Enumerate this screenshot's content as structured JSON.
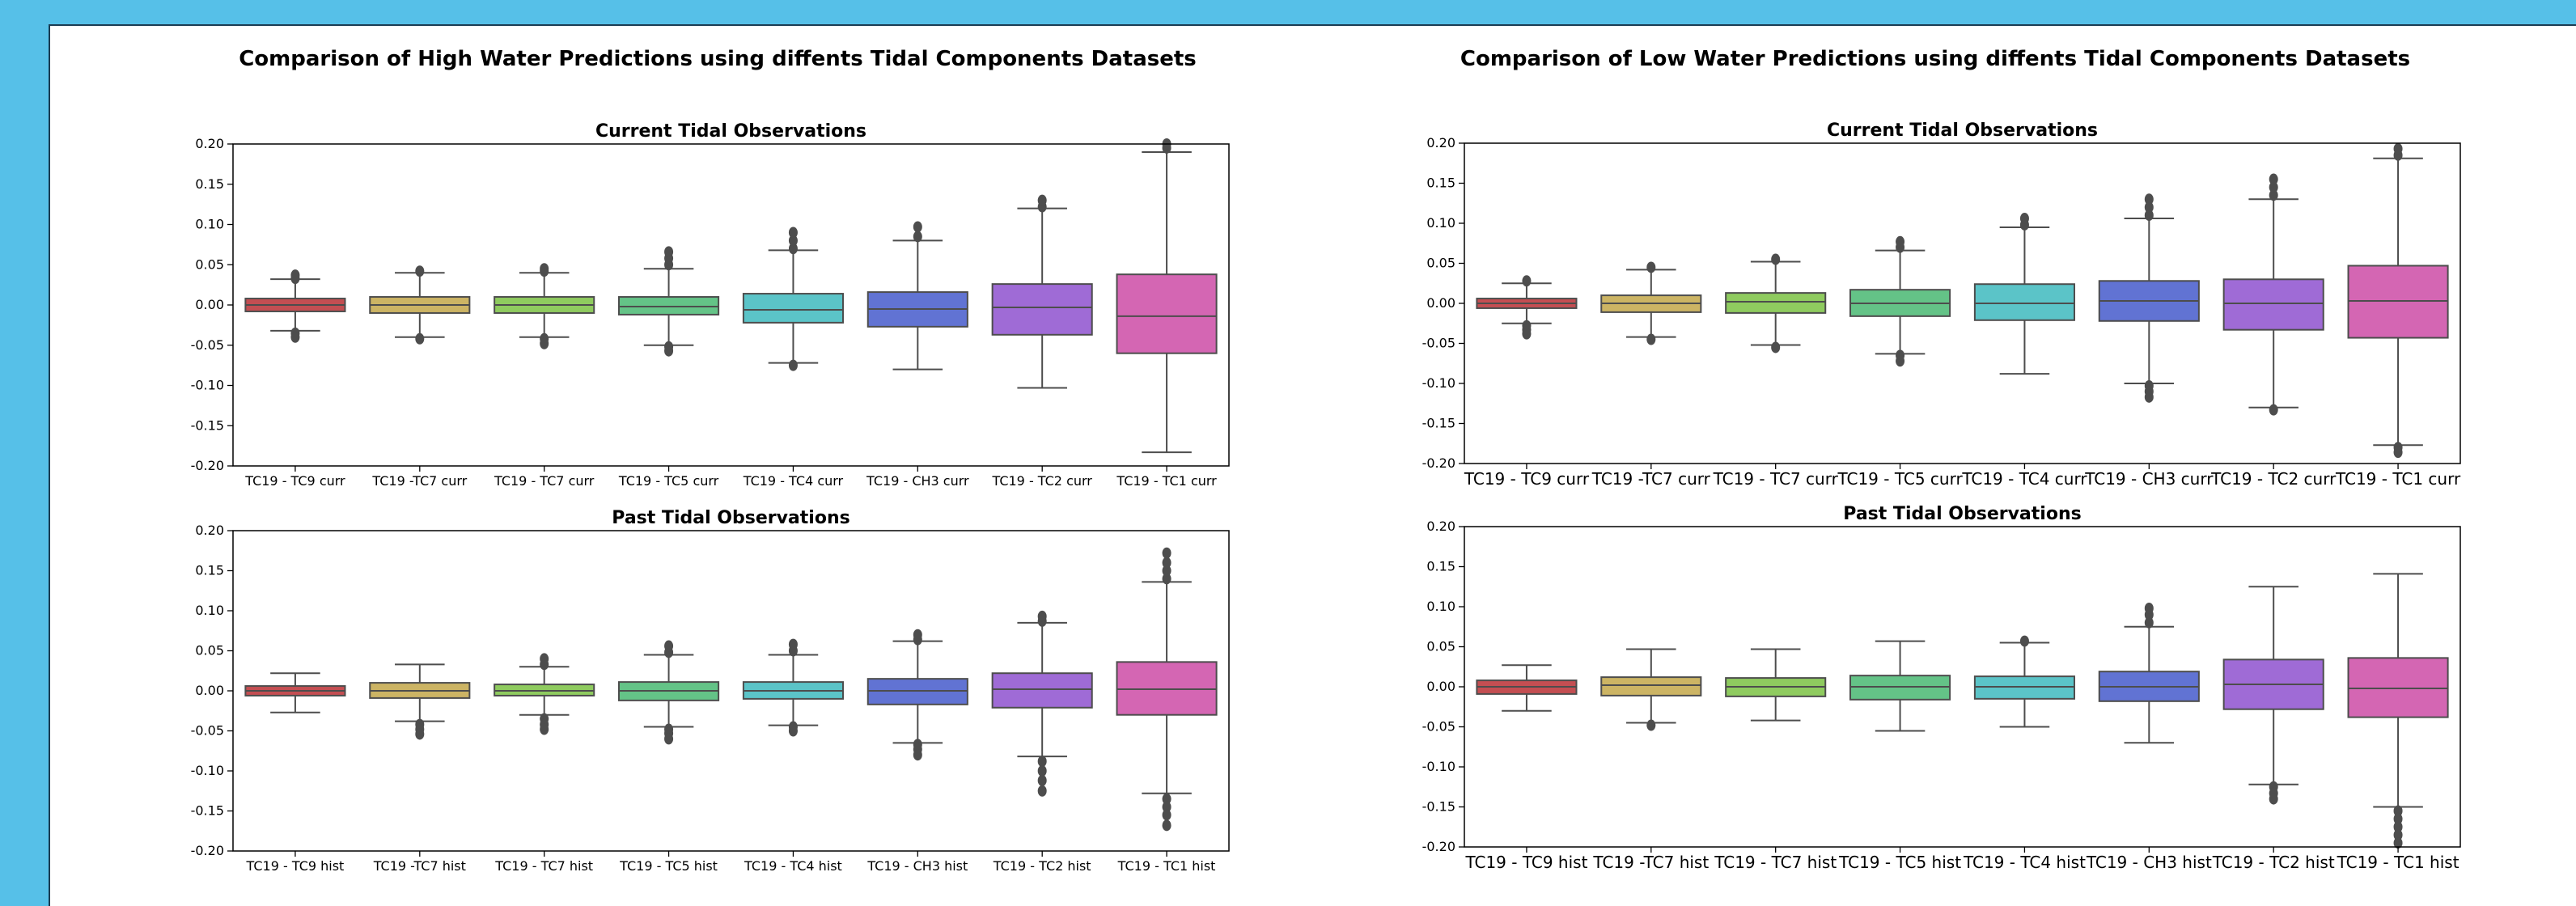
{
  "figure": {
    "left_title": "Comparison of High Water Predictions using diffents Tidal Components Datasets",
    "right_title": "Comparison of Low Water Predictions using diffents Tidal Components Datasets"
  },
  "colors": [
    "#c44e52",
    "#ccb464",
    "#8fcb5f",
    "#64c387",
    "#5bc4c8",
    "#6173d3",
    "#9f6bd6",
    "#d466b3"
  ],
  "chart_data": [
    {
      "type": "box",
      "panel": "high-current",
      "title": "Current Tidal Observations",
      "categories": [
        "TC19 - TC9 curr",
        "TC19 -TC7 curr",
        "TC19 - TC7 curr",
        "TC19 - TC5 curr",
        "TC19 - TC4 curr",
        "TC19 - CH3 curr",
        "TC19 - TC2 curr",
        "TC19 - TC1 curr"
      ],
      "ylim": [
        -0.2,
        0.2
      ],
      "yticks": [
        "-0.20",
        "-0.15",
        "-0.10",
        "-0.05",
        "0.00",
        "0.05",
        "0.10",
        "0.15",
        "0.20"
      ],
      "boxes": [
        {
          "q1": -0.008,
          "median": 0.0,
          "q3": 0.008,
          "whisker_low": -0.032,
          "whisker_high": 0.032,
          "outliers_low": [
            -0.035,
            -0.04
          ],
          "outliers_high": [
            0.033,
            0.037
          ]
        },
        {
          "q1": -0.01,
          "median": 0.0,
          "q3": 0.01,
          "whisker_low": -0.04,
          "whisker_high": 0.04,
          "outliers_low": [
            -0.042
          ],
          "outliers_high": [
            0.042
          ]
        },
        {
          "q1": -0.01,
          "median": 0.0,
          "q3": 0.01,
          "whisker_low": -0.04,
          "whisker_high": 0.04,
          "outliers_low": [
            -0.042,
            -0.048
          ],
          "outliers_high": [
            0.042,
            0.045
          ]
        },
        {
          "q1": -0.012,
          "median": -0.002,
          "q3": 0.01,
          "whisker_low": -0.05,
          "whisker_high": 0.045,
          "outliers_low": [
            -0.052,
            -0.057
          ],
          "outliers_high": [
            0.05,
            0.058,
            0.066
          ]
        },
        {
          "q1": -0.022,
          "median": -0.006,
          "q3": 0.014,
          "whisker_low": -0.072,
          "whisker_high": 0.068,
          "outliers_low": [
            -0.075
          ],
          "outliers_high": [
            0.07,
            0.08,
            0.09
          ]
        },
        {
          "q1": -0.027,
          "median": -0.005,
          "q3": 0.016,
          "whisker_low": -0.08,
          "whisker_high": 0.08,
          "outliers_low": [],
          "outliers_high": [
            0.085,
            0.097
          ]
        },
        {
          "q1": -0.037,
          "median": -0.003,
          "q3": 0.026,
          "whisker_low": -0.103,
          "whisker_high": 0.12,
          "outliers_low": [],
          "outliers_high": [
            0.122,
            0.13
          ]
        },
        {
          "q1": -0.06,
          "median": -0.014,
          "q3": 0.038,
          "whisker_low": -0.183,
          "whisker_high": 0.19,
          "outliers_low": [],
          "outliers_high": [
            0.195,
            0.2
          ]
        }
      ]
    },
    {
      "type": "box",
      "panel": "high-past",
      "title": "Past Tidal Observations",
      "categories": [
        "TC19 - TC9 hist",
        "TC19 -TC7 hist",
        "TC19 - TC7 hist",
        "TC19 - TC5 hist",
        "TC19 - TC4 hist",
        "TC19 - CH3 hist",
        "TC19 - TC2 hist",
        "TC19 - TC1 hist"
      ],
      "ylim": [
        -0.2,
        0.2
      ],
      "yticks": [
        "-0.20",
        "-0.15",
        "-0.10",
        "-0.05",
        "0.00",
        "0.05",
        "0.10",
        "0.15",
        "0.20"
      ],
      "boxes": [
        {
          "q1": -0.006,
          "median": 0.0,
          "q3": 0.006,
          "whisker_low": -0.027,
          "whisker_high": 0.022,
          "outliers_low": [],
          "outliers_high": []
        },
        {
          "q1": -0.009,
          "median": 0.0,
          "q3": 0.01,
          "whisker_low": -0.038,
          "whisker_high": 0.033,
          "outliers_low": [
            -0.042,
            -0.048,
            -0.054
          ],
          "outliers_high": []
        },
        {
          "q1": -0.006,
          "median": 0.0,
          "q3": 0.008,
          "whisker_low": -0.03,
          "whisker_high": 0.03,
          "outliers_low": [
            -0.035,
            -0.042,
            -0.048
          ],
          "outliers_high": [
            0.033,
            0.04
          ]
        },
        {
          "q1": -0.012,
          "median": 0.0,
          "q3": 0.011,
          "whisker_low": -0.045,
          "whisker_high": 0.045,
          "outliers_low": [
            -0.048,
            -0.053,
            -0.06
          ],
          "outliers_high": [
            0.048,
            0.056
          ]
        },
        {
          "q1": -0.01,
          "median": 0.0,
          "q3": 0.011,
          "whisker_low": -0.043,
          "whisker_high": 0.045,
          "outliers_low": [
            -0.045,
            -0.05
          ],
          "outliers_high": [
            0.05,
            0.058
          ]
        },
        {
          "q1": -0.017,
          "median": 0.0,
          "q3": 0.015,
          "whisker_low": -0.065,
          "whisker_high": 0.062,
          "outliers_low": [
            -0.067,
            -0.073,
            -0.08
          ],
          "outliers_high": [
            0.064,
            0.07
          ]
        },
        {
          "q1": -0.021,
          "median": 0.002,
          "q3": 0.022,
          "whisker_low": -0.082,
          "whisker_high": 0.085,
          "outliers_low": [
            -0.088,
            -0.1,
            -0.112,
            -0.125
          ],
          "outliers_high": [
            0.087,
            0.093
          ]
        },
        {
          "q1": -0.03,
          "median": 0.002,
          "q3": 0.036,
          "whisker_low": -0.128,
          "whisker_high": 0.136,
          "outliers_low": [
            -0.135,
            -0.145,
            -0.155,
            -0.168
          ],
          "outliers_high": [
            0.14,
            0.15,
            0.16,
            0.172
          ]
        }
      ]
    },
    {
      "type": "box",
      "panel": "low-current",
      "title": "Current Tidal Observations",
      "categories": [
        "TC19 - TC9 curr",
        "TC19 -TC7 curr",
        "TC19 - TC7 curr",
        "TC19 - TC5 curr",
        "TC19 - TC4 curr",
        "TC19 - CH3 curr",
        "TC19 - TC2 curr",
        "TC19 - TC1 curr"
      ],
      "ylim": [
        -0.2,
        0.2
      ],
      "yticks": [
        "-0.20",
        "-0.15",
        "-0.10",
        "-0.05",
        "0.00",
        "0.05",
        "0.10",
        "0.15",
        "0.20"
      ],
      "boxes": [
        {
          "q1": -0.006,
          "median": 0.0,
          "q3": 0.006,
          "whisker_low": -0.025,
          "whisker_high": 0.025,
          "outliers_low": [
            -0.028,
            -0.033,
            -0.038
          ],
          "outliers_high": [
            0.028
          ]
        },
        {
          "q1": -0.011,
          "median": 0.0,
          "q3": 0.01,
          "whisker_low": -0.042,
          "whisker_high": 0.042,
          "outliers_low": [
            -0.045
          ],
          "outliers_high": [
            0.045
          ]
        },
        {
          "q1": -0.012,
          "median": 0.002,
          "q3": 0.013,
          "whisker_low": -0.052,
          "whisker_high": 0.052,
          "outliers_low": [
            -0.055
          ],
          "outliers_high": [
            0.055
          ]
        },
        {
          "q1": -0.016,
          "median": 0.0,
          "q3": 0.017,
          "whisker_low": -0.063,
          "whisker_high": 0.066,
          "outliers_low": [
            -0.065,
            -0.072
          ],
          "outliers_high": [
            0.07,
            0.077
          ]
        },
        {
          "q1": -0.021,
          "median": 0.0,
          "q3": 0.024,
          "whisker_low": -0.088,
          "whisker_high": 0.095,
          "outliers_low": [],
          "outliers_high": [
            0.098,
            0.106
          ]
        },
        {
          "q1": -0.022,
          "median": 0.003,
          "q3": 0.028,
          "whisker_low": -0.1,
          "whisker_high": 0.106,
          "outliers_low": [
            -0.103,
            -0.11,
            -0.117
          ],
          "outliers_high": [
            0.11,
            0.12,
            0.13
          ]
        },
        {
          "q1": -0.033,
          "median": 0.0,
          "q3": 0.03,
          "whisker_low": -0.13,
          "whisker_high": 0.13,
          "outliers_low": [
            -0.133
          ],
          "outliers_high": [
            0.135,
            0.145,
            0.155
          ]
        },
        {
          "q1": -0.043,
          "median": 0.003,
          "q3": 0.047,
          "whisker_low": -0.177,
          "whisker_high": 0.181,
          "outliers_low": [
            -0.18,
            -0.186
          ],
          "outliers_high": [
            0.185,
            0.193
          ]
        }
      ]
    },
    {
      "type": "box",
      "panel": "low-past",
      "title": "Past Tidal Observations",
      "categories": [
        "TC19 - TC9 hist",
        "TC19 -TC7 hist",
        "TC19 - TC7 hist",
        "TC19 - TC5 hist",
        "TC19 - TC4 hist",
        "TC19 - CH3 hist",
        "TC19 - TC2 hist",
        "TC19 - TC1 hist"
      ],
      "ylim": [
        -0.2,
        0.2
      ],
      "yticks": [
        "-0.20",
        "-0.15",
        "-0.10",
        "-0.05",
        "0.00",
        "0.05",
        "0.10",
        "0.15",
        "0.20"
      ],
      "boxes": [
        {
          "q1": -0.009,
          "median": 0.0,
          "q3": 0.008,
          "whisker_low": -0.03,
          "whisker_high": 0.027,
          "outliers_low": [],
          "outliers_high": []
        },
        {
          "q1": -0.011,
          "median": 0.002,
          "q3": 0.012,
          "whisker_low": -0.045,
          "whisker_high": 0.047,
          "outliers_low": [
            -0.048
          ],
          "outliers_high": []
        },
        {
          "q1": -0.012,
          "median": 0.0,
          "q3": 0.011,
          "whisker_low": -0.042,
          "whisker_high": 0.047,
          "outliers_low": [],
          "outliers_high": []
        },
        {
          "q1": -0.016,
          "median": 0.0,
          "q3": 0.014,
          "whisker_low": -0.055,
          "whisker_high": 0.057,
          "outliers_low": [],
          "outliers_high": []
        },
        {
          "q1": -0.015,
          "median": 0.0,
          "q3": 0.013,
          "whisker_low": -0.05,
          "whisker_high": 0.055,
          "outliers_low": [],
          "outliers_high": [
            0.057
          ]
        },
        {
          "q1": -0.018,
          "median": 0.0,
          "q3": 0.019,
          "whisker_low": -0.07,
          "whisker_high": 0.075,
          "outliers_low": [],
          "outliers_high": [
            0.08,
            0.09,
            0.098
          ]
        },
        {
          "q1": -0.028,
          "median": 0.003,
          "q3": 0.034,
          "whisker_low": -0.122,
          "whisker_high": 0.125,
          "outliers_low": [
            -0.125,
            -0.133,
            -0.14
          ],
          "outliers_high": []
        },
        {
          "q1": -0.038,
          "median": -0.002,
          "q3": 0.036,
          "whisker_low": -0.15,
          "whisker_high": 0.141,
          "outliers_low": [
            -0.155,
            -0.165,
            -0.175,
            -0.185,
            -0.195
          ],
          "outliers_high": []
        }
      ]
    }
  ]
}
